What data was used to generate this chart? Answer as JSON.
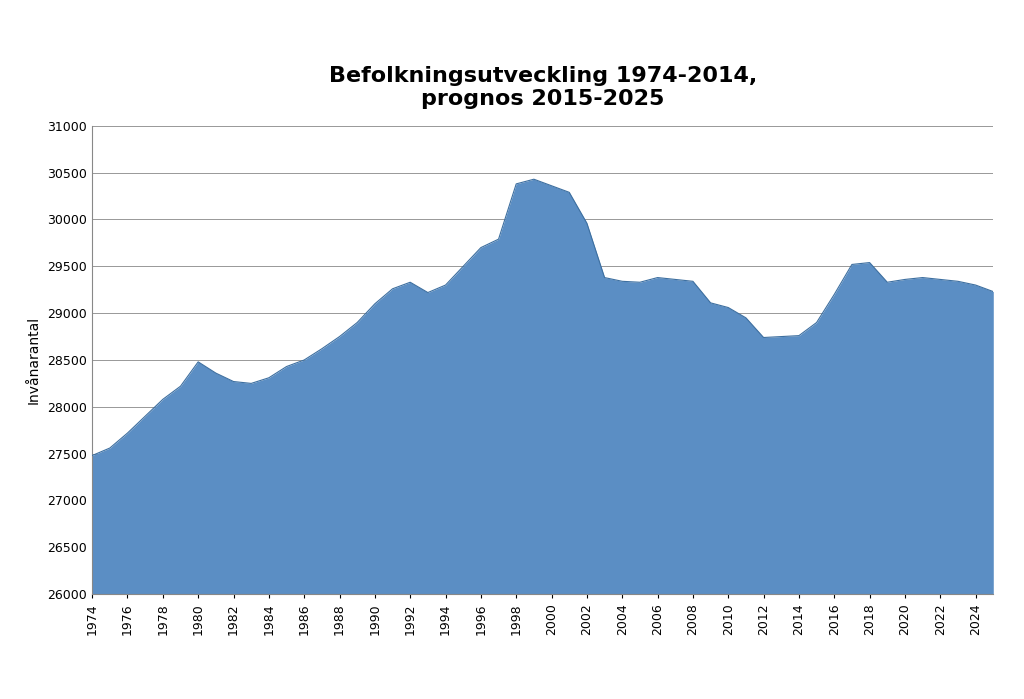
{
  "title": "Befolkningsutveckling 1974-2014,\nprognos 2015-2025",
  "ylabel": "Invånarantal",
  "fill_color": "#5b8ec4",
  "fill_edge_color": "#3d6fa0",
  "background_color": "#ffffff",
  "ylim": [
    26000,
    31000
  ],
  "ytick_step": 500,
  "years": [
    1974,
    1975,
    1976,
    1977,
    1978,
    1979,
    1980,
    1981,
    1982,
    1983,
    1984,
    1985,
    1986,
    1987,
    1988,
    1989,
    1990,
    1991,
    1992,
    1993,
    1994,
    1995,
    1996,
    1997,
    1998,
    1999,
    2000,
    2001,
    2002,
    2003,
    2004,
    2005,
    2006,
    2007,
    2008,
    2009,
    2010,
    2011,
    2012,
    2013,
    2014,
    2015,
    2016,
    2017,
    2018,
    2019,
    2020,
    2021,
    2022,
    2023,
    2024,
    2025
  ],
  "values": [
    27480,
    27560,
    27720,
    27900,
    28080,
    28220,
    28480,
    28360,
    28270,
    28250,
    28310,
    28430,
    28500,
    28620,
    28750,
    28900,
    29100,
    29260,
    29330,
    29220,
    29300,
    29500,
    29700,
    29790,
    30380,
    30430,
    30360,
    30290,
    29960,
    29380,
    29340,
    29330,
    29380,
    29360,
    29340,
    29110,
    29060,
    28950,
    28740,
    28750,
    28760,
    28900,
    29200,
    29520,
    29540,
    29330,
    29360,
    29380,
    29360,
    29340,
    29300,
    29230
  ],
  "title_fontsize": 16,
  "ylabel_fontsize": 10,
  "tick_fontsize": 9
}
